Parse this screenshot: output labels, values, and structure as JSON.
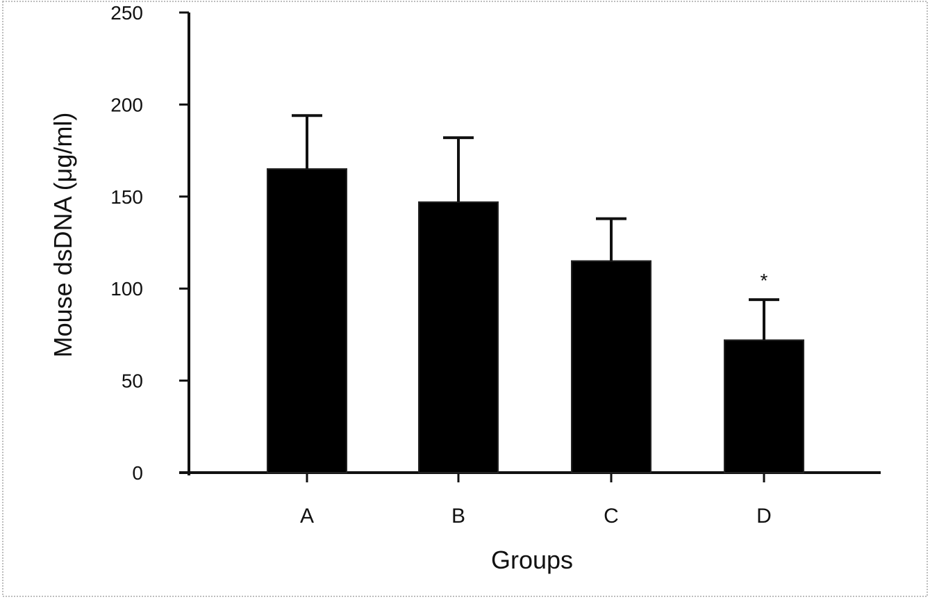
{
  "chart_data": {
    "type": "bar",
    "title": "",
    "xlabel": "Groups",
    "ylabel": "Mouse dsDNA (μg/ml)",
    "categories": [
      "A",
      "B",
      "C",
      "D"
    ],
    "values": [
      165,
      147,
      115,
      72
    ],
    "error_upper": [
      194,
      182,
      138,
      94
    ],
    "annotations": [
      "",
      "",
      "",
      "*"
    ],
    "ylim": [
      0,
      250
    ],
    "yticks": [
      0,
      50,
      100,
      150,
      200,
      250
    ],
    "ytick_labels": [
      "0",
      "50",
      "100",
      "150",
      "200",
      "250"
    ],
    "bar_color": "#000000",
    "grid": false,
    "legend": "none"
  }
}
